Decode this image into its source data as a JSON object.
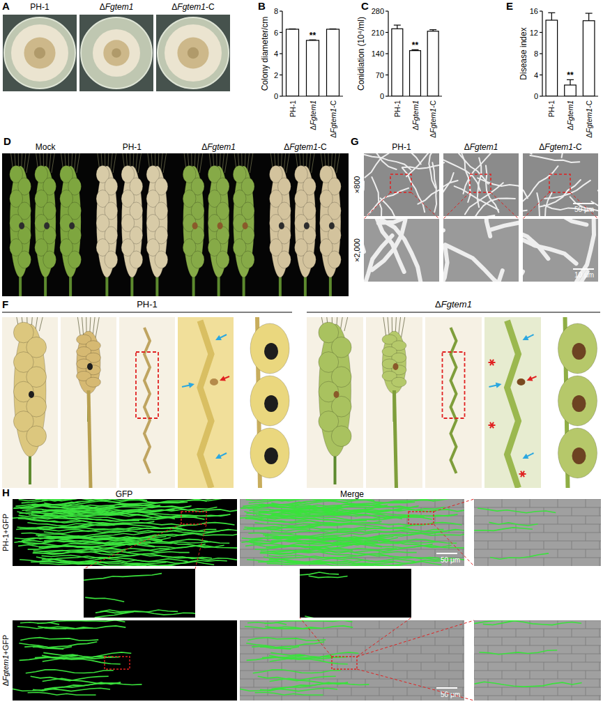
{
  "chart_data": [
    {
      "type": "bar",
      "y_label": "Colony diameter/cm",
      "categories": [
        "PH-1",
        "ΔFgtem1",
        "ΔFgtem1-C"
      ],
      "values": [
        6.3,
        5.25,
        6.3
      ],
      "errors": [
        0.03,
        0.05,
        0.03
      ],
      "ylim": [
        0,
        8
      ],
      "yticks": [
        0,
        2,
        4,
        6,
        8
      ],
      "color": "#ffffff",
      "annotations": [
        {
          "category": "ΔFgtem1",
          "text": "**"
        }
      ]
    },
    {
      "type": "bar",
      "y_label": "Conidiation (10⁴/ml)",
      "categories": [
        "PH-1",
        "ΔFgtem1",
        "ΔFgtem1-C"
      ],
      "values": [
        222,
        150,
        214
      ],
      "errors": [
        12,
        3,
        5
      ],
      "ylim": [
        0,
        280
      ],
      "yticks": [
        0,
        70,
        140,
        210,
        280
      ],
      "color": "#ffffff",
      "annotations": [
        {
          "category": "ΔFgtem1",
          "text": "**"
        }
      ]
    },
    {
      "type": "bar",
      "y_label": "Disease index",
      "categories": [
        "PH-1",
        "ΔFgtem1",
        "ΔFgtem1-C"
      ],
      "values": [
        14.3,
        2.1,
        14.2
      ],
      "errors": [
        1.4,
        1.0,
        1.4
      ],
      "ylim": [
        0,
        16
      ],
      "yticks": [
        0,
        4,
        8,
        12,
        16
      ],
      "color": "#ffffff",
      "annotations": [
        {
          "category": "ΔFgtem1",
          "text": "**"
        }
      ]
    }
  ],
  "panel_letters": [
    "A",
    "B",
    "C",
    "D",
    "E",
    "F",
    "G",
    "H"
  ],
  "panel_a": {
    "strains": [
      "PH-1",
      "ΔFgtem1",
      "ΔFgtem1-C"
    ]
  },
  "panel_d": {
    "labels": [
      "Mock",
      "PH-1",
      "ΔFgtem1",
      "ΔFgtem1-C"
    ]
  },
  "panel_f": {
    "strains": [
      "PH-1",
      "ΔFgtem1"
    ]
  },
  "panel_g": {
    "strains": [
      "PH-1",
      "ΔFgtem1",
      "ΔFgtem1-C"
    ],
    "magnifications": [
      "×800",
      "×2,000"
    ],
    "scale_bars": [
      "50 μm",
      "10 μm"
    ]
  },
  "panel_h": {
    "channels": [
      "GFP",
      "Merge"
    ],
    "rows": [
      "PH-1+GFP",
      "ΔFgtem1+GFP"
    ],
    "scale_bar": "50 μm"
  }
}
